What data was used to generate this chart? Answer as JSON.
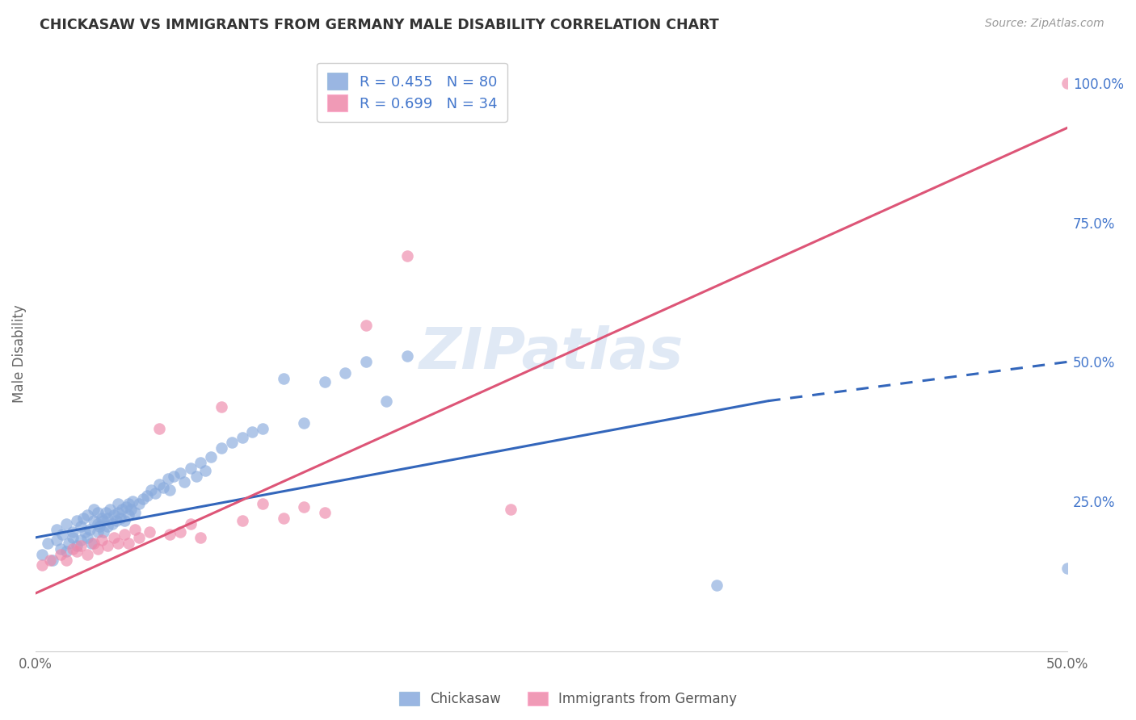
{
  "title": "CHICKASAW VS IMMIGRANTS FROM GERMANY MALE DISABILITY CORRELATION CHART",
  "source": "Source: ZipAtlas.com",
  "ylabel": "Male Disability",
  "xlim": [
    0.0,
    0.5
  ],
  "ylim": [
    -0.02,
    1.05
  ],
  "x_ticks": [
    0.0,
    0.1,
    0.2,
    0.3,
    0.4,
    0.5
  ],
  "x_tick_labels": [
    "0.0%",
    "",
    "",
    "",
    "",
    "50.0%"
  ],
  "y_tick_right": [
    0.0,
    0.25,
    0.5,
    0.75,
    1.0
  ],
  "y_tick_right_labels": [
    "",
    "25.0%",
    "50.0%",
    "75.0%",
    "100.0%"
  ],
  "color_blue": "#88AADD",
  "color_pink": "#EE88AA",
  "color_blue_line": "#3366BB",
  "color_pink_line": "#DD5577",
  "color_blue_text": "#4477CC",
  "color_pink_text": "#DD4466",
  "watermark": "ZIPatlas",
  "scatter_blue_x": [
    0.003,
    0.006,
    0.008,
    0.01,
    0.01,
    0.012,
    0.013,
    0.015,
    0.015,
    0.016,
    0.018,
    0.018,
    0.02,
    0.02,
    0.022,
    0.022,
    0.023,
    0.024,
    0.025,
    0.025,
    0.026,
    0.027,
    0.028,
    0.028,
    0.03,
    0.03,
    0.03,
    0.031,
    0.032,
    0.033,
    0.033,
    0.034,
    0.035,
    0.035,
    0.036,
    0.037,
    0.038,
    0.039,
    0.04,
    0.04,
    0.041,
    0.042,
    0.043,
    0.044,
    0.045,
    0.045,
    0.046,
    0.047,
    0.048,
    0.05,
    0.052,
    0.054,
    0.056,
    0.058,
    0.06,
    0.062,
    0.064,
    0.065,
    0.067,
    0.07,
    0.072,
    0.075,
    0.078,
    0.08,
    0.082,
    0.085,
    0.09,
    0.095,
    0.1,
    0.105,
    0.11,
    0.12,
    0.13,
    0.14,
    0.15,
    0.16,
    0.17,
    0.18,
    0.33,
    0.5
  ],
  "scatter_blue_y": [
    0.155,
    0.175,
    0.145,
    0.18,
    0.2,
    0.165,
    0.19,
    0.16,
    0.21,
    0.175,
    0.185,
    0.195,
    0.17,
    0.215,
    0.18,
    0.205,
    0.22,
    0.195,
    0.185,
    0.225,
    0.2,
    0.175,
    0.215,
    0.235,
    0.195,
    0.21,
    0.23,
    0.205,
    0.22,
    0.195,
    0.215,
    0.23,
    0.205,
    0.22,
    0.235,
    0.21,
    0.225,
    0.215,
    0.23,
    0.245,
    0.22,
    0.235,
    0.215,
    0.24,
    0.225,
    0.245,
    0.235,
    0.25,
    0.23,
    0.245,
    0.255,
    0.26,
    0.27,
    0.265,
    0.28,
    0.275,
    0.29,
    0.27,
    0.295,
    0.3,
    0.285,
    0.31,
    0.295,
    0.32,
    0.305,
    0.33,
    0.345,
    0.355,
    0.365,
    0.375,
    0.38,
    0.47,
    0.39,
    0.465,
    0.48,
    0.5,
    0.43,
    0.51,
    0.1,
    0.13
  ],
  "scatter_pink_x": [
    0.003,
    0.007,
    0.012,
    0.015,
    0.018,
    0.02,
    0.022,
    0.025,
    0.028,
    0.03,
    0.032,
    0.035,
    0.038,
    0.04,
    0.043,
    0.045,
    0.048,
    0.05,
    0.055,
    0.06,
    0.065,
    0.07,
    0.075,
    0.08,
    0.09,
    0.1,
    0.11,
    0.12,
    0.13,
    0.14,
    0.16,
    0.18,
    0.23,
    0.5
  ],
  "scatter_pink_y": [
    0.135,
    0.145,
    0.155,
    0.145,
    0.165,
    0.16,
    0.17,
    0.155,
    0.175,
    0.165,
    0.18,
    0.17,
    0.185,
    0.175,
    0.19,
    0.175,
    0.2,
    0.185,
    0.195,
    0.38,
    0.19,
    0.195,
    0.21,
    0.185,
    0.42,
    0.215,
    0.245,
    0.22,
    0.24,
    0.23,
    0.565,
    0.69,
    0.235,
    1.0
  ],
  "trend_blue_x0": 0.0,
  "trend_blue_x1": 0.355,
  "trend_blue_y0": 0.185,
  "trend_blue_y1": 0.43,
  "trend_blue_dashed_x0": 0.355,
  "trend_blue_dashed_x1": 0.5,
  "trend_blue_dashed_y0": 0.43,
  "trend_blue_dashed_y1": 0.5,
  "trend_pink_x0": 0.0,
  "trend_pink_x1": 0.5,
  "trend_pink_y0": 0.085,
  "trend_pink_y1": 0.92
}
